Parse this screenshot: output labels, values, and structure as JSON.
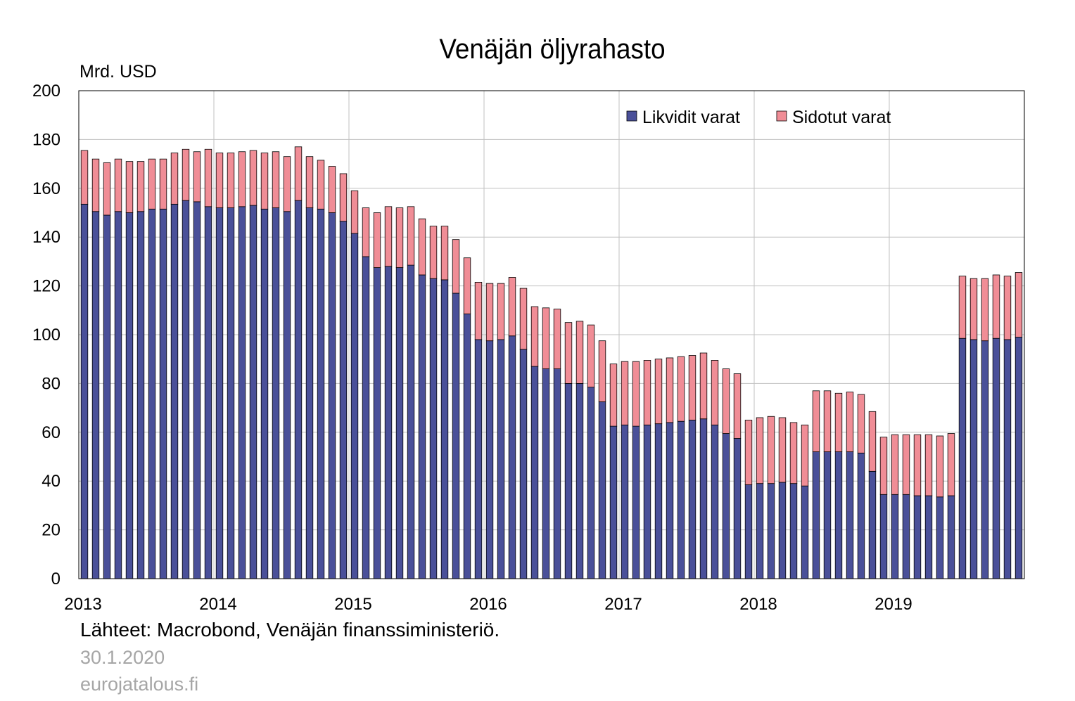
{
  "colors": {
    "liquid": "#4a5099",
    "tied": "#f08d96",
    "grid": "#c0c0c0",
    "axis": "#000000",
    "footer_gray": "#a6a6a6"
  },
  "footer": {
    "source": "Lähteet: Macrobond, Venäjän finanssiministeriö.",
    "date": "30.1.2020",
    "site": "eurojatalous.fi"
  },
  "chart_data": {
    "type": "bar",
    "stacked": true,
    "title": "Venäjän öljyrahasto",
    "ylabel": "Mrd. USD",
    "ylim": [
      0,
      200
    ],
    "yticks": [
      0,
      20,
      40,
      60,
      80,
      100,
      120,
      140,
      160,
      180,
      200
    ],
    "xticks": [
      "2013",
      "2014",
      "2015",
      "2016",
      "2017",
      "2018",
      "2019"
    ],
    "x_start": "2013-01",
    "frequency": "monthly",
    "grid": true,
    "legend_position": "top-right",
    "series": [
      {
        "name": "Likvidit varat",
        "color": "#4a5099",
        "values": [
          153.5,
          150.5,
          149,
          150.5,
          150,
          150.5,
          151.5,
          151.5,
          153.5,
          155,
          154.5,
          152.5,
          152,
          152,
          152.5,
          153,
          151.5,
          152,
          150.5,
          155,
          152,
          151.5,
          150,
          146.5,
          141.5,
          132,
          127.5,
          128,
          127.5,
          128.5,
          124.5,
          123,
          122.5,
          117,
          108.5,
          98,
          97.5,
          98,
          99.5,
          94,
          87,
          86,
          86,
          80,
          80,
          78.5,
          72.5,
          62.5,
          63,
          62.5,
          63,
          63.5,
          64,
          64.5,
          65,
          65.5,
          63,
          59.5,
          57.5,
          38.5,
          39,
          39,
          39.5,
          39,
          38,
          52,
          52,
          52,
          52,
          51.5,
          44,
          34.5,
          34.5,
          34.5,
          34,
          34,
          33.5,
          34,
          98.5,
          98,
          97.5,
          98.5,
          98,
          99
        ]
      },
      {
        "name": "Sidotut varat",
        "color": "#f08d96",
        "values": [
          22,
          21.5,
          21.5,
          21.5,
          21,
          20.5,
          20.5,
          20.5,
          21,
          21,
          20.5,
          23.5,
          22.5,
          22.5,
          22.5,
          22.5,
          23,
          23,
          22.5,
          22,
          21,
          20,
          19,
          19.5,
          17.5,
          20,
          22.5,
          24.5,
          24.5,
          24,
          23,
          21.5,
          22,
          22,
          23,
          23.5,
          23.5,
          23,
          24,
          25,
          24.5,
          25,
          24.5,
          25,
          25.5,
          25.5,
          25,
          25.5,
          26,
          26.5,
          26.5,
          26.5,
          26.5,
          26.5,
          26.5,
          27,
          26.5,
          26.5,
          26.5,
          26.5,
          27,
          27.5,
          26.5,
          25,
          25,
          25,
          25,
          24,
          24.5,
          24,
          24.5,
          23.5,
          24.5,
          24.5,
          25,
          25,
          25,
          25.5,
          25.5,
          25,
          25.5,
          26,
          26,
          26.5
        ]
      }
    ]
  }
}
